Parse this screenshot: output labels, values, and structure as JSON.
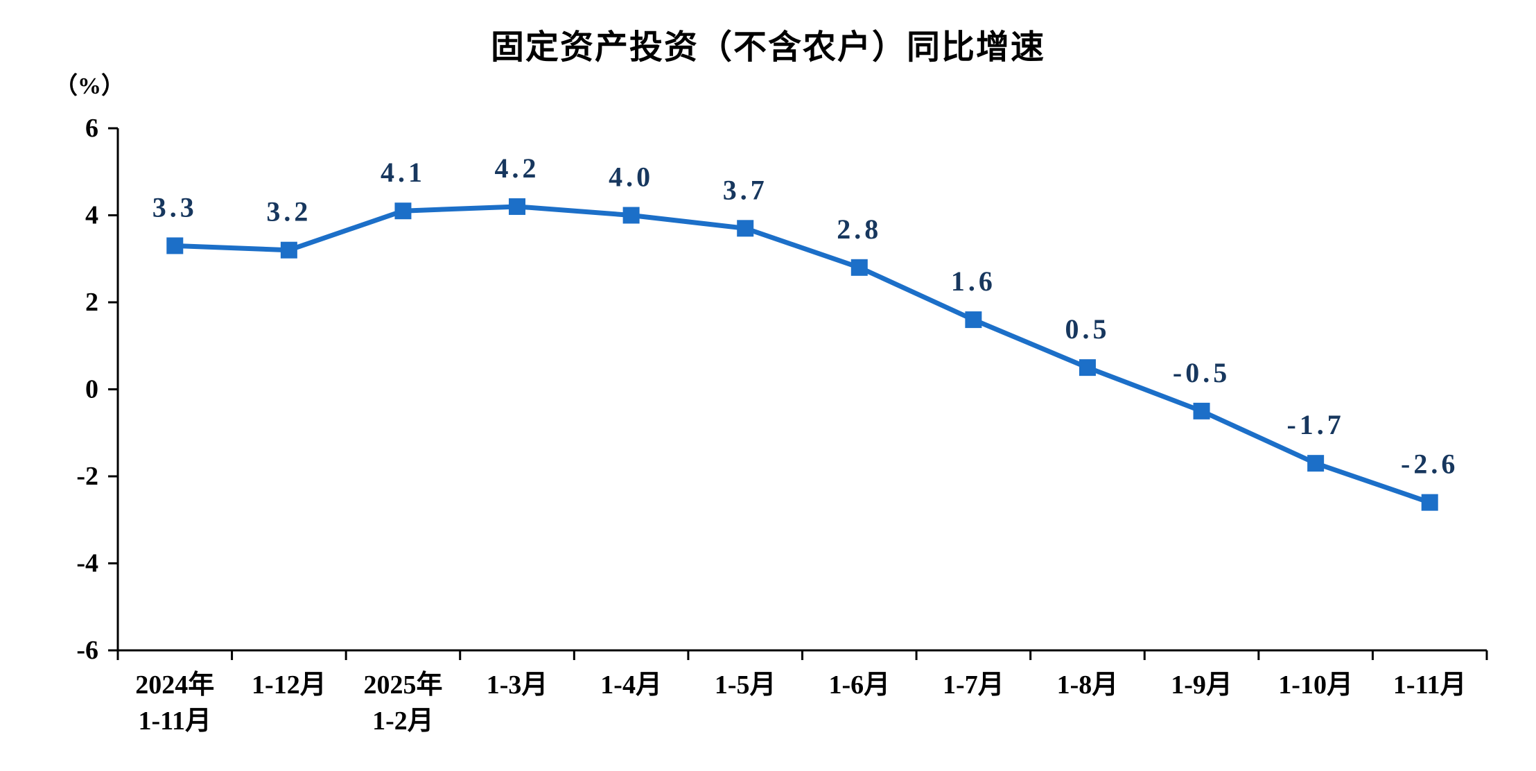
{
  "title": "固定资产投资（不含农户）同比增速",
  "chart_data": {
    "type": "line",
    "title": "固定资产投资（不含农户）同比增速",
    "ylabel": "（%）",
    "xlabel": "",
    "categories": [
      "2024年\n1-11月",
      "1-12月",
      "2025年\n1-2月",
      "1-3月",
      "1-4月",
      "1-5月",
      "1-6月",
      "1-7月",
      "1-8月",
      "1-9月",
      "1-10月",
      "1-11月"
    ],
    "values": [
      3.3,
      3.2,
      4.1,
      4.2,
      4.0,
      3.7,
      2.8,
      1.6,
      0.5,
      -0.5,
      -1.7,
      -2.6
    ],
    "data_labels": [
      "3.3",
      "3.2",
      "4.1",
      "4.2",
      "4.0",
      "3.7",
      "2.8",
      "1.6",
      "0.5",
      "-0.5",
      "-1.7",
      "-2.6"
    ],
    "ylim": [
      -6,
      6
    ],
    "yticks": [
      6,
      4,
      2,
      0,
      -2,
      -4,
      -6
    ],
    "grid": false,
    "legend_position": "none",
    "line_color": "#1c6fc8",
    "marker": "square",
    "marker_color": "#1c6fc8",
    "data_label_color": "#17375e",
    "axis_color": "#000000",
    "axis_text_color": "#000000"
  }
}
